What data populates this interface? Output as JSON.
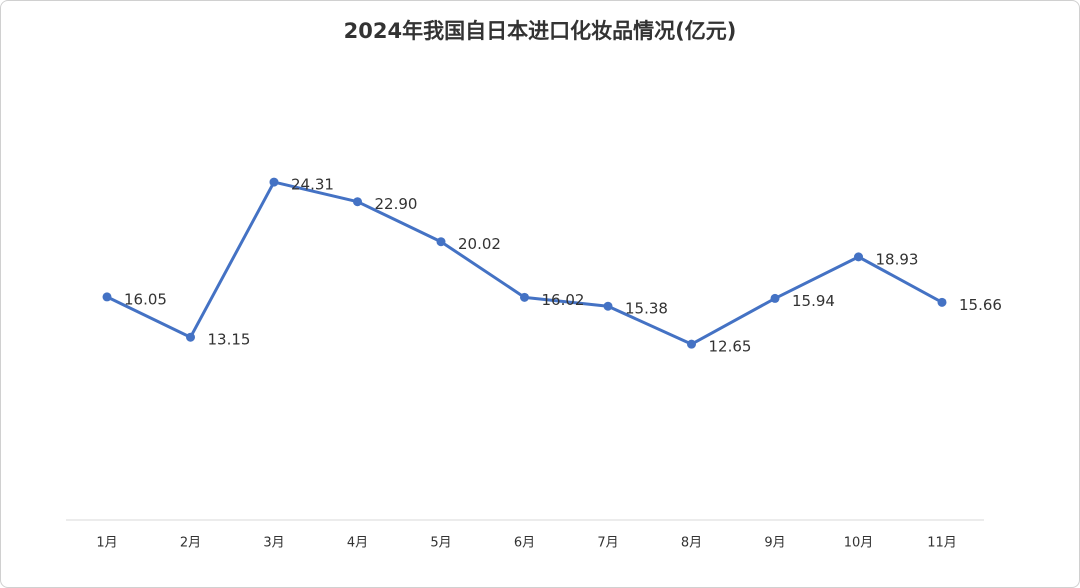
{
  "chart_data": {
    "type": "line",
    "title": "2024年我国自日本进口化妆品情况(亿元)",
    "categories": [
      "1月",
      "2月",
      "3月",
      "4月",
      "5月",
      "6月",
      "7月",
      "8月",
      "9月",
      "10月",
      "11月"
    ],
    "series": [
      {
        "color": "#4472c4",
        "values": [
          16.05,
          13.15,
          24.31,
          22.9,
          20.02,
          16.02,
          15.38,
          12.65,
          15.94,
          18.93,
          15.66
        ],
        "value_labels": [
          "16.05",
          "13.15",
          "24.31",
          "22.90",
          "20.02",
          "16.02",
          "15.38",
          "12.65",
          "15.94",
          "18.93",
          "15.66"
        ]
      }
    ],
    "ylim": [
      0,
      30
    ]
  }
}
